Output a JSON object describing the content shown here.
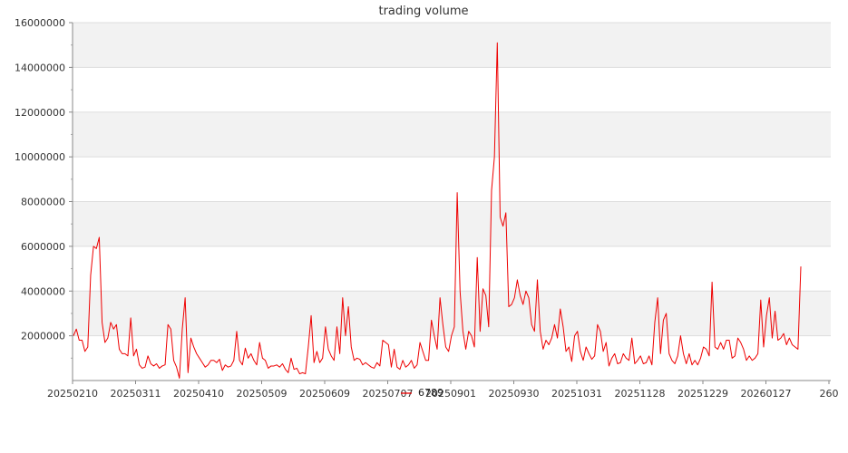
{
  "chart_data": {
    "type": "line",
    "title": "trading volume",
    "xlabel": "",
    "ylabel": "",
    "ylim": [
      0,
      16000000
    ],
    "yticks": [
      2000000,
      4000000,
      6000000,
      8000000,
      10000000,
      12000000,
      14000000,
      16000000
    ],
    "ytick_labels": [
      "2000000",
      "4000000",
      "6000000",
      "8000000",
      "10000000",
      "12000000",
      "14000000",
      "16000000"
    ],
    "xtick_labels": [
      "20250210",
      "20250311",
      "20250410",
      "20250509",
      "20250609",
      "20250707",
      "20250901",
      "20250930",
      "20251031",
      "20251128",
      "20251229",
      "20260127",
      "260"
    ],
    "grid": true,
    "alternating_bands": true,
    "legend": {
      "position": "bottom",
      "color": "#ee0000"
    },
    "series": [
      {
        "name": "6789",
        "color": "#ee0000",
        "values": [
          2000000,
          2300000,
          1800000,
          1800000,
          1300000,
          1500000,
          4700000,
          6000000,
          5900000,
          6400000,
          2600000,
          1700000,
          1900000,
          2600000,
          2300000,
          2500000,
          1400000,
          1200000,
          1200000,
          1100000,
          2800000,
          1100000,
          1400000,
          700000,
          550000,
          600000,
          1100000,
          750000,
          650000,
          750000,
          550000,
          650000,
          700000,
          2500000,
          2300000,
          900000,
          600000,
          100000,
          2300000,
          3700000,
          350000,
          1900000,
          1500000,
          1200000,
          1000000,
          800000,
          600000,
          700000,
          900000,
          900000,
          800000,
          950000,
          450000,
          700000,
          600000,
          650000,
          900000,
          2200000,
          900000,
          700000,
          1450000,
          1000000,
          1200000,
          900000,
          700000,
          1700000,
          1000000,
          900000,
          550000,
          650000,
          650000,
          700000,
          600000,
          750000,
          500000,
          350000,
          1000000,
          500000,
          550000,
          300000,
          350000,
          300000,
          1500000,
          2900000,
          800000,
          1300000,
          800000,
          1000000,
          2400000,
          1400000,
          1100000,
          900000,
          2400000,
          1200000,
          3700000,
          2000000,
          3300000,
          1500000,
          900000,
          1000000,
          950000,
          700000,
          800000,
          700000,
          600000,
          550000,
          800000,
          650000,
          1800000,
          1700000,
          1600000,
          600000,
          1400000,
          600000,
          500000,
          900000,
          600000,
          700000,
          900000,
          550000,
          700000,
          1700000,
          1300000,
          900000,
          900000,
          2700000,
          2000000,
          1400000,
          3700000,
          2500000,
          1500000,
          1300000,
          2000000,
          2400000,
          8400000,
          4000000,
          2200000,
          1400000,
          2200000,
          2000000,
          1500000,
          5500000,
          2200000,
          4100000,
          3800000,
          2400000,
          8500000,
          10000000,
          15100000,
          7300000,
          6900000,
          7500000,
          3300000,
          3400000,
          3700000,
          4500000,
          3800000,
          3400000,
          4000000,
          3700000,
          2500000,
          2200000,
          4500000,
          2200000,
          1400000,
          1800000,
          1600000,
          1900000,
          2500000,
          1900000,
          3200000,
          2400000,
          1300000,
          1500000,
          850000,
          2000000,
          2200000,
          1300000,
          900000,
          1500000,
          1200000,
          950000,
          1100000,
          2500000,
          2200000,
          1300000,
          1700000,
          650000,
          1000000,
          1200000,
          750000,
          800000,
          1200000,
          1000000,
          900000,
          1900000,
          750000,
          900000,
          1100000,
          750000,
          800000,
          1100000,
          700000,
          2600000,
          3700000,
          1200000,
          2700000,
          3000000,
          1200000,
          900000,
          750000,
          1100000,
          2000000,
          1200000,
          750000,
          1200000,
          700000,
          900000,
          700000,
          1000000,
          1500000,
          1400000,
          1100000,
          4400000,
          1500000,
          1400000,
          1700000,
          1400000,
          1800000,
          1800000,
          1000000,
          1100000,
          1900000,
          1700000,
          1400000,
          900000,
          1100000,
          900000,
          1000000,
          1200000,
          3600000,
          1500000,
          2900000,
          3700000,
          1900000,
          3100000,
          1800000,
          1900000,
          2100000,
          1600000,
          1900000,
          1600000,
          1500000,
          1400000,
          5100000
        ]
      }
    ]
  }
}
